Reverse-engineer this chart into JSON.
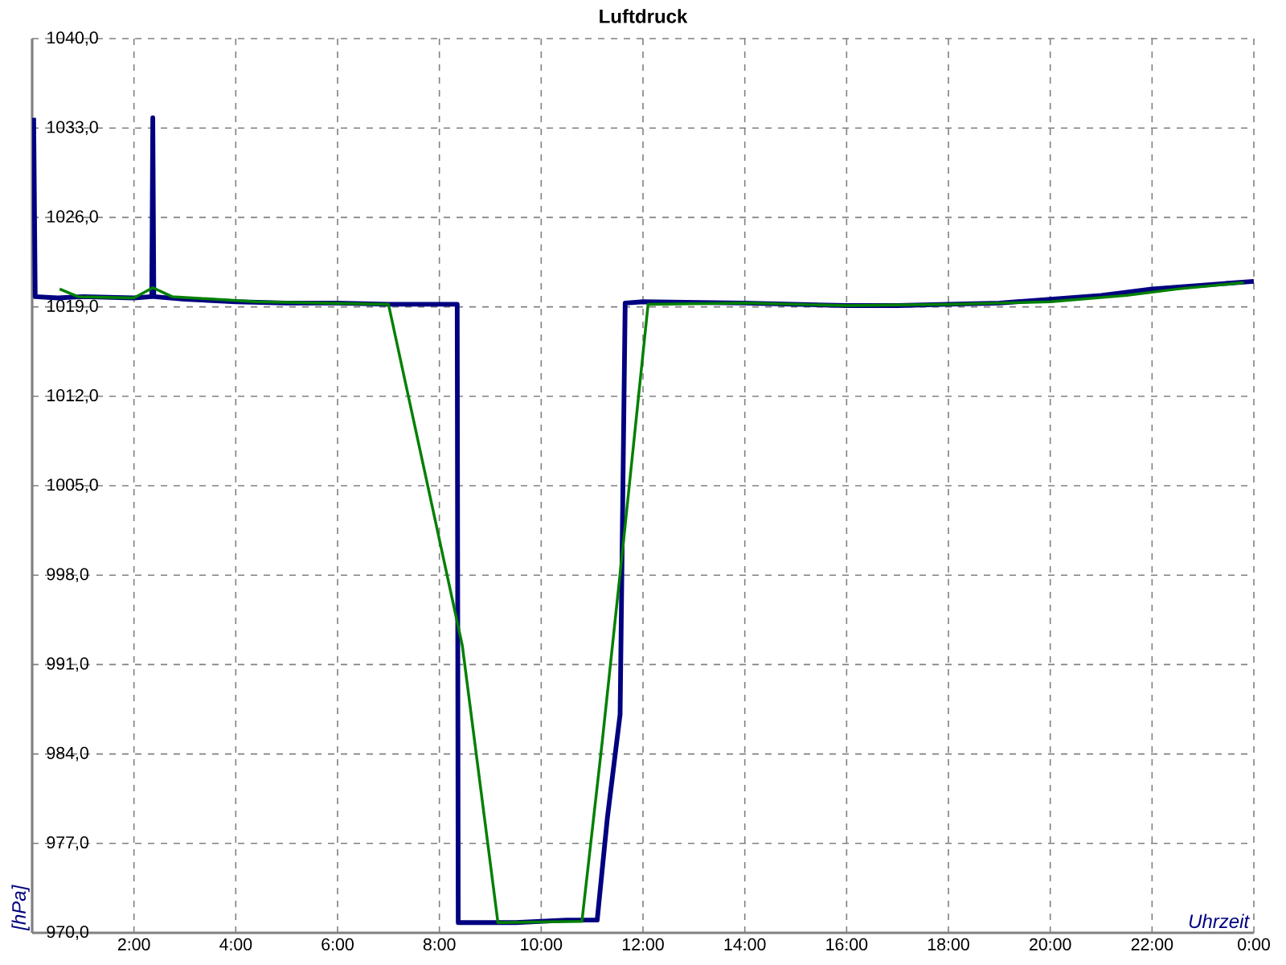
{
  "chart_data": {
    "type": "line",
    "title": "Luftdruck",
    "xlabel": "Uhrzeit",
    "ylabel": "[hPa]",
    "xlim": [
      0,
      24
    ],
    "ylim": [
      970,
      1040
    ],
    "xticks": [
      {
        "value": 0,
        "label": null
      },
      {
        "value": 2,
        "label": "2:00"
      },
      {
        "value": 4,
        "label": "4:00"
      },
      {
        "value": 6,
        "label": "6:00"
      },
      {
        "value": 8,
        "label": "8:00"
      },
      {
        "value": 10,
        "label": "10:00"
      },
      {
        "value": 12,
        "label": "12:00"
      },
      {
        "value": 14,
        "label": "14:00"
      },
      {
        "value": 16,
        "label": "16:00"
      },
      {
        "value": 18,
        "label": "18:00"
      },
      {
        "value": 20,
        "label": "20:00"
      },
      {
        "value": 22,
        "label": "22:00"
      },
      {
        "value": 24,
        "label": "0:00"
      }
    ],
    "yticks": [
      {
        "value": 970,
        "label": "970,0"
      },
      {
        "value": 977,
        "label": "977,0"
      },
      {
        "value": 984,
        "label": "984,0"
      },
      {
        "value": 991,
        "label": "991,0"
      },
      {
        "value": 998,
        "label": "998,0"
      },
      {
        "value": 1005,
        "label": "1005,0"
      },
      {
        "value": 1012,
        "label": "1012,0"
      },
      {
        "value": 1019,
        "label": "1019,0"
      },
      {
        "value": 1026,
        "label": "1026,0"
      },
      {
        "value": 1033,
        "label": "1033,0"
      },
      {
        "value": 1040,
        "label": "1040,0"
      }
    ],
    "grid": true,
    "line_style": "solid",
    "legend": false,
    "series": [
      {
        "color": "#000080",
        "x": [
          0.03,
          0.06,
          0.5,
          1.0,
          2.0,
          2.35,
          2.37,
          2.39,
          3,
          4,
          5,
          6,
          7,
          8.35,
          8.37,
          9.5,
          10.5,
          11.1,
          11.3,
          11.55,
          11.65,
          12,
          14,
          16,
          17,
          18,
          19,
          20,
          21,
          22,
          23,
          24
        ],
        "values": [
          1033.8,
          1019.8,
          1019.7,
          1019.8,
          1019.7,
          1019.8,
          1033.8,
          1019.8,
          1019.6,
          1019.4,
          1019.3,
          1019.3,
          1019.2,
          1019.2,
          970.8,
          970.8,
          971.0,
          971.0,
          979,
          987.1,
          1019.3,
          1019.4,
          1019.3,
          1019.1,
          1019.1,
          1019.2,
          1019.3,
          1019.6,
          1019.9,
          1020.4,
          1020.7,
          1021.0
        ]
      },
      {
        "color": "#008000",
        "x": [
          0.54,
          0.9,
          2.0,
          2.37,
          2.75,
          4.4,
          7.0,
          8.45,
          9.15,
          10.8,
          11.2,
          11.6,
          12.1,
          14,
          16,
          18,
          20,
          21.5,
          22.5,
          23.8
        ],
        "values": [
          1020.4,
          1019.8,
          1019.7,
          1020.5,
          1019.8,
          1019.4,
          1019.2,
          992.5,
          970.8,
          970.9,
          985,
          1000,
          1019.2,
          1019.3,
          1019.1,
          1019.2,
          1019.4,
          1019.9,
          1020.4,
          1020.9
        ]
      }
    ]
  }
}
